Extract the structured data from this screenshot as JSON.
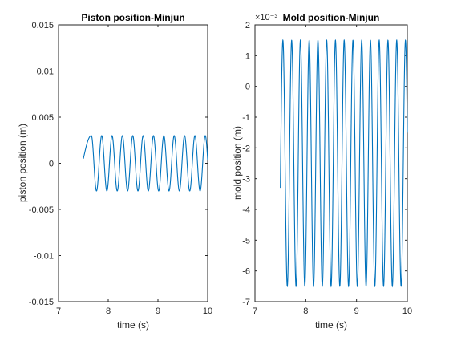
{
  "chart_data": [
    {
      "type": "line",
      "title": "Piston position-Minjun",
      "xlabel": "time (s)",
      "ylabel": "piston position (m)",
      "xlim": [
        7,
        10
      ],
      "ylim": [
        -0.015,
        0.015
      ],
      "xticks": [
        7,
        8,
        9,
        10
      ],
      "xtick_labels": [
        "7",
        "8",
        "9",
        "10"
      ],
      "yticks": [
        0.015,
        0.01,
        0.005,
        0,
        -0.005,
        -0.01,
        -0.015
      ],
      "ytick_labels": [
        "0.015",
        "0.01",
        "0.005",
        "0",
        "-0.005",
        "-0.01",
        "-0.015"
      ],
      "grid": false,
      "color": "#0072BD",
      "series": [
        {
          "t_start": 7.5,
          "t_end": 10,
          "start_value": 0.0005,
          "amplitude": 0.003,
          "offset": 0.0,
          "frequency_hz": 4.8,
          "first_peak_t": 7.66
        }
      ]
    },
    {
      "type": "line",
      "title": "Mold position-Minjun",
      "xlabel": "time (s)",
      "ylabel": "mold position (m)",
      "xlim": [
        7,
        10
      ],
      "ylim": [
        -7,
        2
      ],
      "y_exponent_label": "×10⁻³",
      "xticks": [
        7,
        8,
        9,
        10
      ],
      "xtick_labels": [
        "7",
        "8",
        "9",
        "10"
      ],
      "yticks": [
        2,
        1,
        0,
        -1,
        -2,
        -3,
        -4,
        -5,
        -6,
        -7
      ],
      "ytick_labels": [
        "2",
        "1",
        "0",
        "-1",
        "-2",
        "-3",
        "-4",
        "-5",
        "-6",
        "-7"
      ],
      "grid": false,
      "color": "#0072BD",
      "series": [
        {
          "t_start": 7.5,
          "t_end": 10,
          "start_value": -3.3,
          "amplitude": 4.0,
          "offset": -2.5,
          "frequency_hz": 5.8,
          "first_peak_t": 7.55
        }
      ]
    }
  ]
}
